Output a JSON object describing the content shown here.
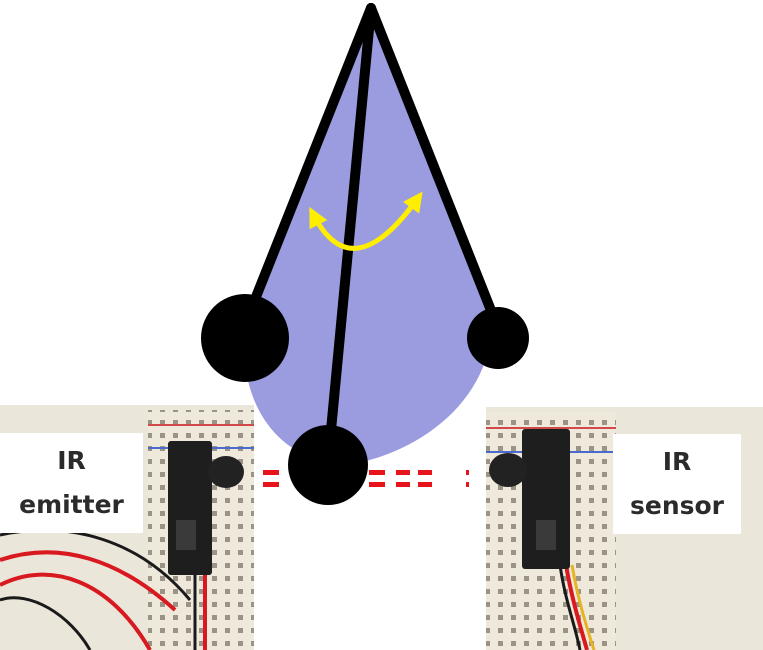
{
  "labels": {
    "emitter": [
      "IR",
      "emitter"
    ],
    "sensor": [
      "IR",
      "sensor"
    ]
  },
  "colors": {
    "pendulum_fill": "#9b9be0",
    "rod": "#000000",
    "bob": "#000000",
    "swing_arrow": "#ffee00",
    "beam": "#e8141c",
    "breadboard": "#efe9dc",
    "sensor_body": "#1e1e1e",
    "wire_red": "#d8191f",
    "wire_black": "#1a1a1a",
    "wire_yellow": "#e6b422"
  },
  "icons": [
    "swing-arrow-icon",
    "ir-beam-icon"
  ]
}
